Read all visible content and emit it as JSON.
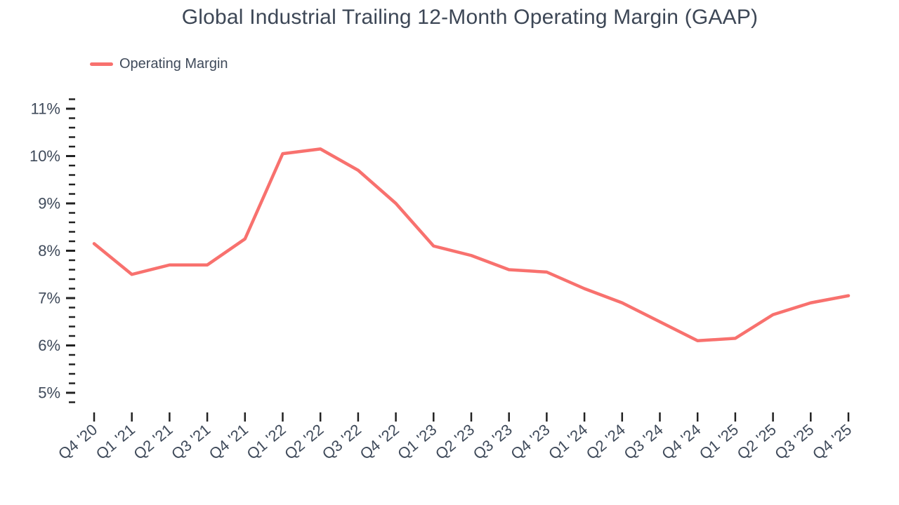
{
  "colors": {
    "series": "#f8716e",
    "axis_text": "#3f4a5a",
    "tick_mark": "#222222",
    "title_text": "#3d4756",
    "background": "#ffffff"
  },
  "legend": {
    "items": [
      {
        "label": "Operating Margin",
        "color": "#f8716e"
      }
    ]
  },
  "chart_data": {
    "type": "line",
    "title": "Global Industrial Trailing 12-Month Operating Margin (GAAP)",
    "xlabel": "",
    "ylabel": "",
    "legend_position": "top-left",
    "grid": false,
    "categories": [
      "Q4 '20",
      "Q1 '21",
      "Q2 '21",
      "Q3 '21",
      "Q4 '21",
      "Q1 '22",
      "Q2 '22",
      "Q3 '22",
      "Q4 '22",
      "Q1 '23",
      "Q2 '23",
      "Q3 '23",
      "Q4 '23",
      "Q1 '24",
      "Q2 '24",
      "Q3 '24",
      "Q4 '24",
      "Q1 '25",
      "Q2 '25",
      "Q3 '25",
      "Q4 '25"
    ],
    "series": [
      {
        "name": "Operating Margin",
        "color": "#f8716e",
        "values": [
          8.15,
          7.5,
          7.7,
          7.7,
          8.25,
          10.05,
          10.15,
          9.7,
          9.0,
          8.1,
          7.9,
          7.6,
          7.55,
          7.2,
          6.9,
          6.5,
          6.1,
          6.15,
          6.65,
          6.9,
          7.05
        ]
      }
    ],
    "y_ticks": [
      "5%",
      "6%",
      "7%",
      "8%",
      "9%",
      "10%",
      "11%"
    ],
    "y_tick_values": [
      5,
      6,
      7,
      8,
      9,
      10,
      11
    ],
    "y_minor_step": 0.2,
    "ylim": [
      4.8,
      11.2
    ],
    "unit": "percent"
  }
}
